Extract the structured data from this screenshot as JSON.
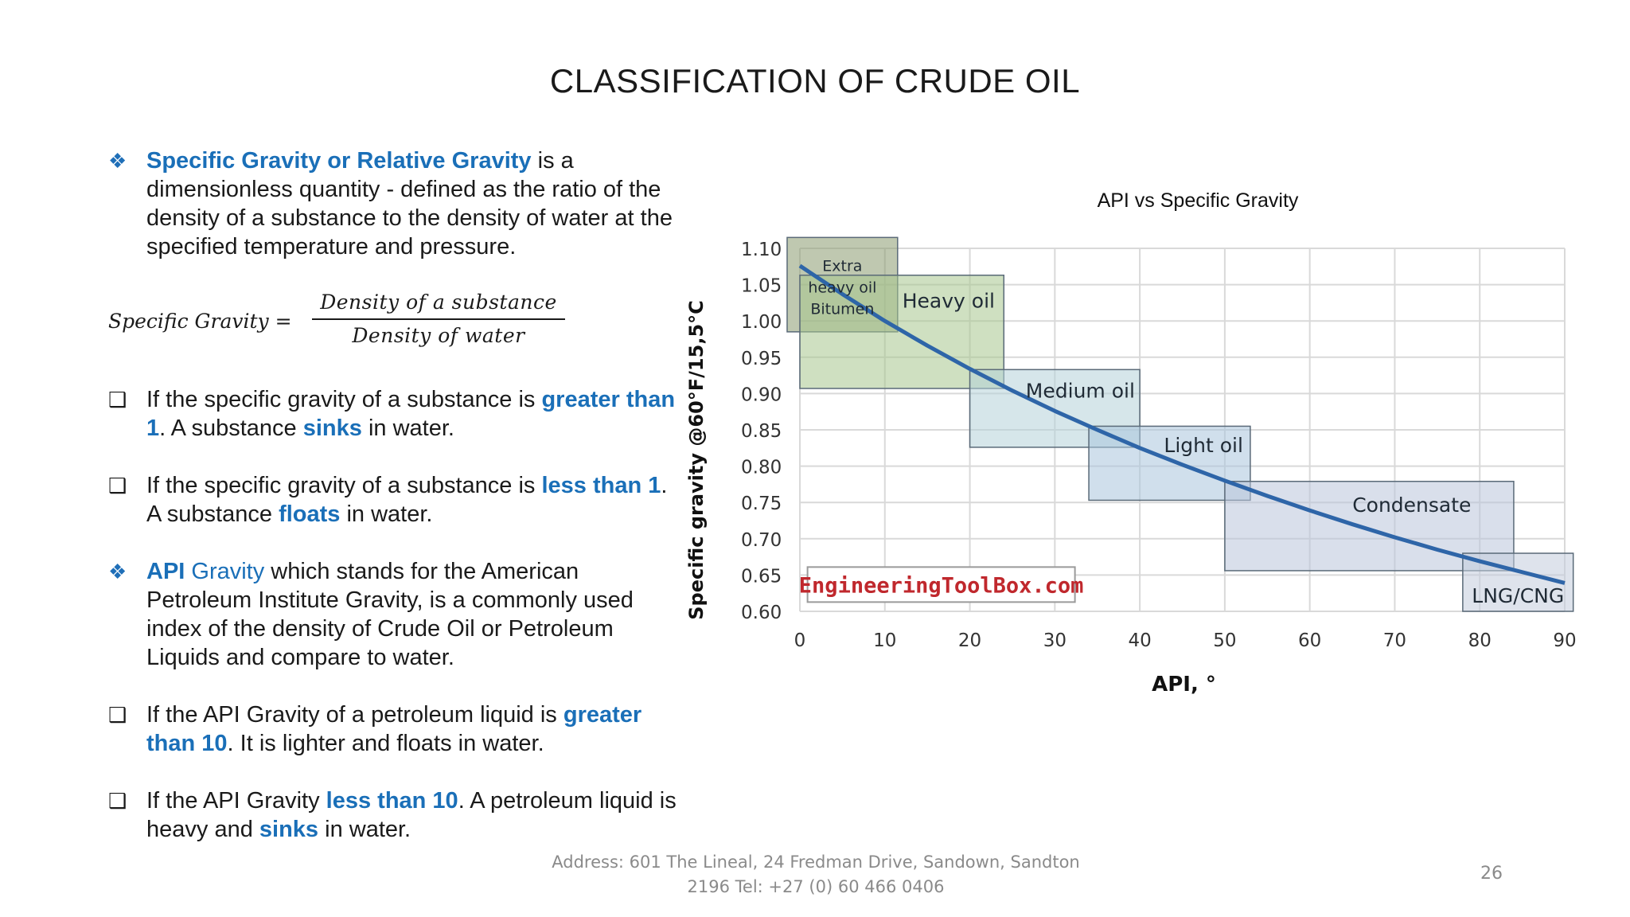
{
  "slide": {
    "title": "CLASSIFICATION OF CRUDE OIL",
    "page_number": "26",
    "footer_line1": "Address: 601 The Lineal, 24 Fredman Drive, Sandown, Sandton",
    "footer_line2": "2196 Tel: +27 (0) 60 466 0406"
  },
  "content": {
    "sg": {
      "term": "Specific Gravity or Relative Gravity",
      "rest": " is a dimensionless quantity - defined as the ratio of the density of a substance to the density of water at the specified temperature and pressure."
    },
    "formula": {
      "lhs": "Specific Gravity =",
      "numerator": "Density of a substance",
      "denominator": "Density of water"
    },
    "sg_greater": {
      "pre": "If the specific gravity of a substance is ",
      "hl1": "greater than 1",
      "mid": ". A substance ",
      "hl2": "sinks",
      "post": " in water."
    },
    "sg_less": {
      "pre": " If the specific gravity of a substance is ",
      "hl1": "less than 1",
      "mid": ". A substance ",
      "hl2": "floats",
      "post": " in water."
    },
    "api": {
      "term1": "API",
      "term2": " Gravity",
      "rest": " which stands for the American Petroleum Institute Gravity, is a commonly used index of the density of Crude Oil or Petroleum Liquids and compare to water."
    },
    "api_greater": {
      "pre": "If the API Gravity of a petroleum liquid is ",
      "hl1": "greater than 10",
      "post": ". It is lighter and floats in water."
    },
    "api_less": {
      "pre": "If the API Gravity ",
      "hl1": "less than 10",
      "mid": ". A petroleum liquid is heavy and ",
      "hl2": "sinks",
      "post": " in water."
    }
  },
  "chart_title": "API vs Specific Gravity",
  "chart_data": {
    "type": "line",
    "title": "API vs Specific Gravity",
    "xlabel": "API, °",
    "ylabel": "Specific gravity @60°F/15,5°C",
    "xlim": [
      0,
      90
    ],
    "ylim": [
      0.6,
      1.1
    ],
    "x_ticks": [
      "0",
      "10",
      "20",
      "30",
      "40",
      "50",
      "60",
      "70",
      "80",
      "90"
    ],
    "y_ticks": [
      "0.60",
      "0.65",
      "0.70",
      "0.75",
      "0.80",
      "0.85",
      "0.90",
      "0.95",
      "1.00",
      "1.05",
      "1.10"
    ],
    "grid": true,
    "series": [
      {
        "color": "#2e65a8",
        "x": [
          0,
          5,
          10,
          15,
          20,
          25,
          30,
          35,
          40,
          45,
          50,
          55,
          60,
          65,
          70,
          75,
          80,
          85,
          90
        ],
        "y": [
          1.076,
          1.037,
          1.0,
          0.966,
          0.934,
          0.904,
          0.876,
          0.85,
          0.825,
          0.802,
          0.78,
          0.759,
          0.739,
          0.72,
          0.702,
          0.685,
          0.669,
          0.654,
          0.639
        ]
      }
    ],
    "regions": [
      {
        "label_lines": [
          "Extra",
          "heavy oil",
          "Bitumen"
        ],
        "x": [
          -1.5,
          11.5
        ],
        "y": [
          0.985,
          1.115
        ],
        "fill": "#8a9a70",
        "label_x": 5,
        "label_y": 1.045
      },
      {
        "label_lines": [
          "Heavy oil"
        ],
        "x": [
          0,
          24
        ],
        "y": [
          0.907,
          1.063
        ],
        "fill": "#a8c68e",
        "label_x": 17.5,
        "label_y": 1.026
      },
      {
        "label_lines": [
          "Medium oil"
        ],
        "x": [
          20,
          40
        ],
        "y": [
          0.826,
          0.933
        ],
        "fill": "#b4d2d8",
        "label_x": 33,
        "label_y": 0.902
      },
      {
        "label_lines": [
          "Light oil"
        ],
        "x": [
          34,
          53
        ],
        "y": [
          0.753,
          0.855
        ],
        "fill": "#a9c4dc",
        "label_x": 47.5,
        "label_y": 0.827
      },
      {
        "label_lines": [
          "Condensate"
        ],
        "x": [
          50,
          84
        ],
        "y": [
          0.656,
          0.779
        ],
        "fill": "#b9c4db",
        "label_x": 72,
        "label_y": 0.745
      },
      {
        "label_lines": [
          "LNG/CNG"
        ],
        "x": [
          78,
          91
        ],
        "y": [
          0.6,
          0.68
        ],
        "fill": "#c2ccdc",
        "label_x": 84.5,
        "label_y": 0.62
      }
    ],
    "watermark": "EngineeringToolBox.com"
  }
}
